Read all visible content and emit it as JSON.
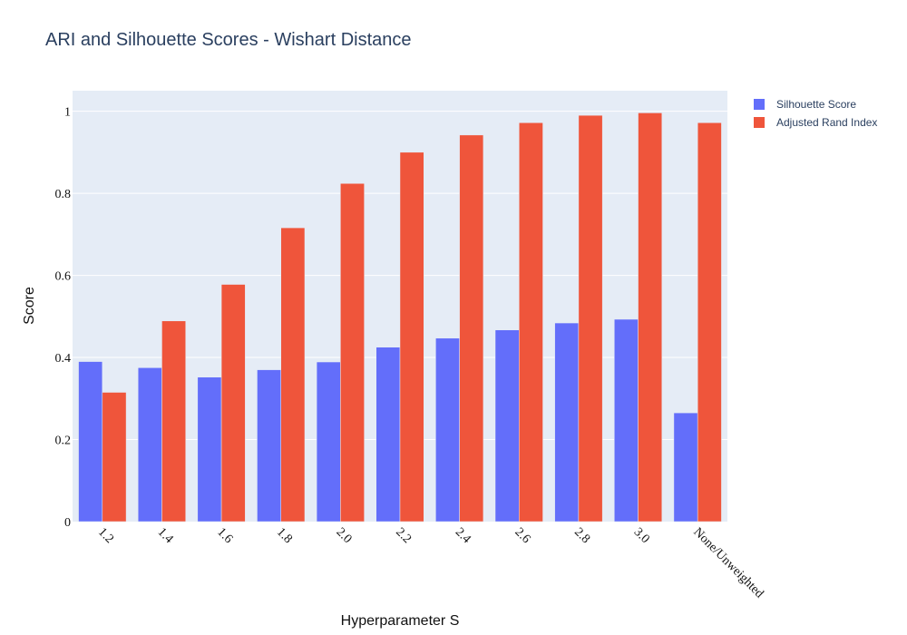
{
  "chart_data": {
    "type": "bar",
    "title": "ARI and Silhouette Scores - Wishart Distance",
    "xlabel": "Hyperparameter S",
    "ylabel": "Score",
    "categories": [
      "1.2",
      "1.4",
      "1.6",
      "1.8",
      "2.0",
      "2.2",
      "2.4",
      "2.6",
      "2.8",
      "3.0",
      "None/Unweighted"
    ],
    "series": [
      {
        "name": "Silhouette Score",
        "color": "#636efa",
        "values": [
          0.39,
          0.375,
          0.352,
          0.37,
          0.389,
          0.425,
          0.447,
          0.467,
          0.484,
          0.493,
          0.265
        ]
      },
      {
        "name": "Adjusted Rand Index",
        "color": "#ef553b",
        "values": [
          0.315,
          0.489,
          0.578,
          0.716,
          0.824,
          0.9,
          0.942,
          0.972,
          0.99,
          0.996,
          0.972
        ]
      }
    ],
    "ylim": [
      0,
      1.05
    ],
    "yticks": [
      0,
      0.2,
      0.4,
      0.6,
      0.8,
      1
    ],
    "ytick_labels": [
      "0",
      "0.2",
      "0.4",
      "0.6",
      "0.8",
      "1"
    ],
    "grid": true,
    "legend_position": "top-right",
    "plot_background": "#e5ecf6"
  }
}
